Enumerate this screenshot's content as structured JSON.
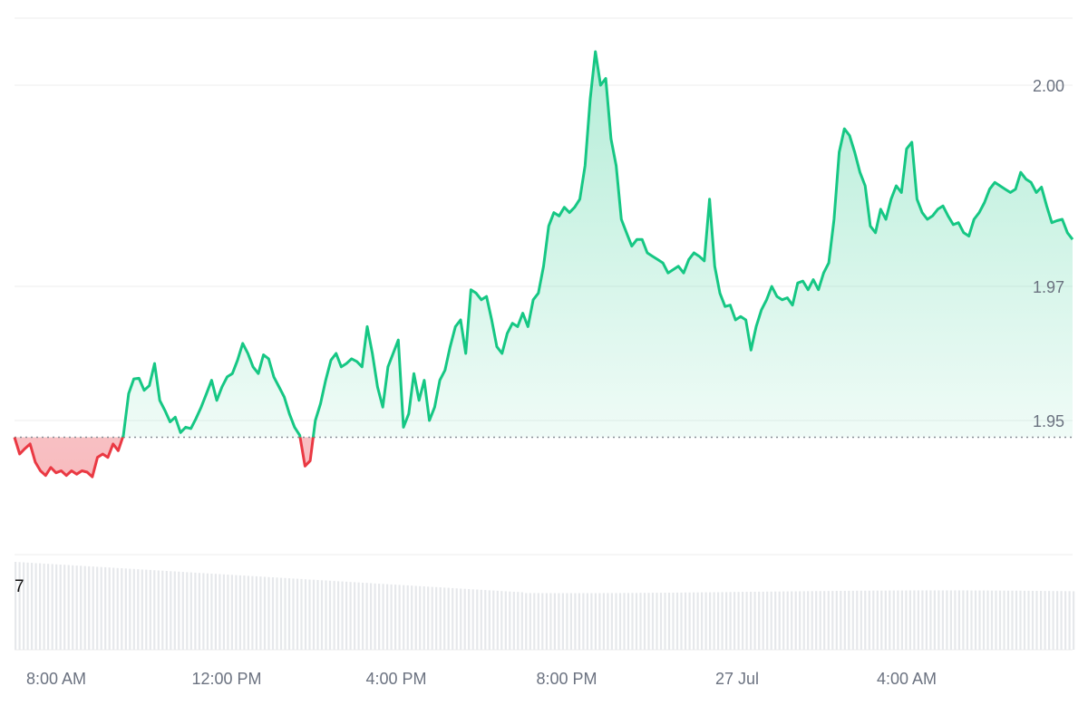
{
  "chart_data": {
    "type": "area",
    "x_ticks": [
      "8:00 AM",
      "12:00 PM",
      "4:00 PM",
      "8:00 PM",
      "27 Jul",
      "4:00 AM"
    ],
    "y_ticks": [
      "1.95",
      "1.97",
      "2.00"
    ],
    "y_tick_values": [
      1.95,
      1.97,
      2.0
    ],
    "ylim": [
      1.93,
      2.01
    ],
    "baseline": 1.9475,
    "volume_label": "7",
    "colors": {
      "up_line": "#16c784",
      "down_line": "#ea3943",
      "up_fill": "#16c784",
      "down_fill": "#ea3943",
      "grid": "#eeeeee",
      "volume": "#e6e8eb"
    },
    "series": [
      {
        "values": [
          1.9475,
          1.945,
          1.9458,
          1.9465,
          1.9438,
          1.9425,
          1.9418,
          1.943,
          1.9422,
          1.9425,
          1.9418,
          1.9425,
          1.942,
          1.9425,
          1.9423,
          1.9416,
          1.9445,
          1.945,
          1.9445,
          1.9465,
          1.9455,
          1.9478,
          1.954,
          1.9562,
          1.9563,
          1.9545,
          1.9552,
          1.9585,
          1.953,
          1.9515,
          1.9498,
          1.9505,
          1.9482,
          1.949,
          1.9488,
          1.9503,
          1.952,
          1.954,
          1.956,
          1.953,
          1.955,
          1.9565,
          1.957,
          1.959,
          1.9615,
          1.96,
          1.958,
          1.957,
          1.9598,
          1.9592,
          1.9565,
          1.955,
          1.9535,
          1.951,
          1.949,
          1.9478,
          1.9432,
          1.944,
          1.95,
          1.9525,
          1.956,
          1.959,
          1.96,
          1.958,
          1.9585,
          1.9592,
          1.9588,
          1.958,
          1.964,
          1.96,
          1.955,
          1.952,
          1.958,
          1.96,
          1.962,
          1.949,
          1.951,
          1.957,
          1.953,
          1.956,
          1.95,
          1.952,
          1.956,
          1.9575,
          1.961,
          1.964,
          1.965,
          1.96,
          1.9695,
          1.969,
          1.968,
          1.9685,
          1.965,
          1.961,
          1.96,
          1.963,
          1.9645,
          1.964,
          1.966,
          1.964,
          1.968,
          1.969,
          1.973,
          1.979,
          1.981,
          1.9805,
          1.9818,
          1.981,
          1.9818,
          1.983,
          1.988,
          1.998,
          2.005,
          2.0,
          2.001,
          1.992,
          1.988,
          1.98,
          1.978,
          1.976,
          1.977,
          1.977,
          1.975,
          1.9745,
          1.974,
          1.9735,
          1.972,
          1.9725,
          1.973,
          1.972,
          1.974,
          1.975,
          1.9745,
          1.9738,
          1.983,
          1.973,
          1.969,
          1.967,
          1.9672,
          1.965,
          1.9655,
          1.965,
          1.9605,
          1.964,
          1.9665,
          1.968,
          1.97,
          1.9685,
          1.968,
          1.9683,
          1.9672,
          1.9705,
          1.9708,
          1.9695,
          1.971,
          1.9695,
          1.972,
          1.9735,
          1.98,
          1.99,
          1.9935,
          1.9925,
          1.99,
          1.987,
          1.985,
          1.979,
          1.978,
          1.9815,
          1.98,
          1.983,
          1.985,
          1.984,
          1.9905,
          1.9915,
          1.983,
          1.981,
          1.98,
          1.9805,
          1.9815,
          1.982,
          1.9805,
          1.9792,
          1.9795,
          1.978,
          1.9775,
          1.98,
          1.981,
          1.9825,
          1.9845,
          1.9855,
          1.985,
          1.9845,
          1.984,
          1.9845,
          1.987,
          1.986,
          1.9855,
          1.984,
          1.9848,
          1.982,
          1.9795,
          1.9798,
          1.98,
          1.978,
          1.977
        ]
      }
    ]
  }
}
